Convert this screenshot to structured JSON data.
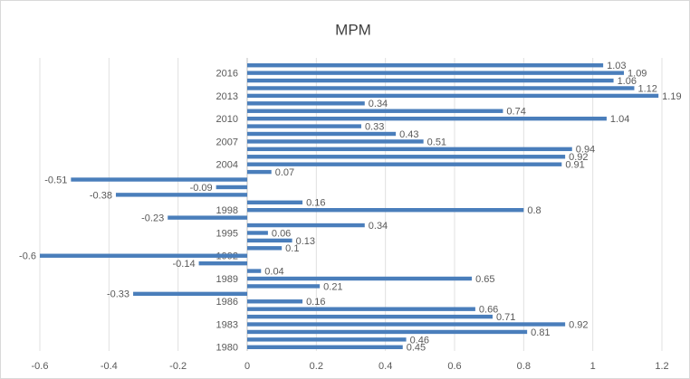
{
  "chart_data": {
    "type": "barh",
    "title": "MPM",
    "categories": [
      null,
      "2016",
      null,
      null,
      "2013",
      null,
      null,
      "2010",
      null,
      null,
      "2007",
      null,
      null,
      "2004",
      null,
      null,
      null,
      null,
      null,
      "1998",
      null,
      null,
      "1995",
      null,
      null,
      "1992",
      null,
      null,
      "1989",
      null,
      null,
      "1986",
      null,
      null,
      "1983",
      null,
      null,
      "1980"
    ],
    "values": [
      1.03,
      1.09,
      1.06,
      1.12,
      1.19,
      0.34,
      0.74,
      1.04,
      0.33,
      0.43,
      0.51,
      0.94,
      0.92,
      0.91,
      0.07,
      -0.51,
      -0.09,
      -0.38,
      0.16,
      0.8,
      -0.23,
      0.34,
      0.06,
      0.13,
      0.1,
      -0.6,
      -0.14,
      0.04,
      0.65,
      0.21,
      -0.33,
      0.16,
      0.66,
      0.71,
      0.92,
      0.81,
      0.46,
      0.45
    ],
    "color": "#4a7ebb",
    "xlim": [
      -0.6,
      1.2
    ],
    "xticks": [
      -0.6,
      -0.4,
      -0.2,
      0,
      0.2,
      0.4,
      0.6,
      0.8,
      1,
      1.2
    ],
    "grid": true
  }
}
